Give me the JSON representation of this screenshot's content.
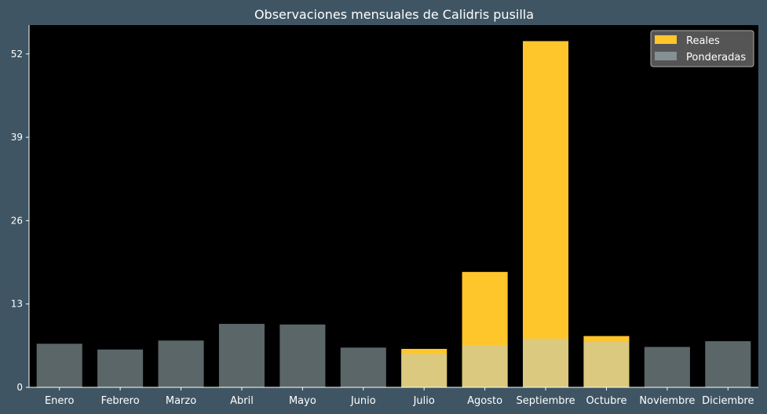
{
  "chart_data": {
    "type": "bar",
    "title": "Observaciones mensuales de Calidris pusilla",
    "xlabel": "",
    "ylabel": "",
    "categories": [
      "Enero",
      "Febrero",
      "Marzo",
      "Abril",
      "Mayo",
      "Junio",
      "Julio",
      "Agosto",
      "Septiembre",
      "Octubre",
      "Noviembre",
      "Diciembre"
    ],
    "series": [
      {
        "name": "Reales",
        "values": [
          0,
          0,
          0,
          0,
          0,
          0,
          6,
          18,
          54,
          8,
          0,
          0
        ]
      },
      {
        "name": "Ponderadas",
        "values": [
          6.8,
          5.9,
          7.3,
          9.9,
          9.8,
          6.2,
          5.2,
          6.6,
          7.6,
          7.2,
          6.3,
          7.2
        ]
      }
    ],
    "ylim": [
      0,
      56.5
    ],
    "yticks": [
      0,
      13,
      26,
      39,
      52
    ],
    "legend_position": "top-right",
    "grid": false,
    "colors": {
      "figure_background": "#3f5563",
      "plot_background": "#000000",
      "Reales": "#ffc62b",
      "Ponderadas": "#b5ccd2",
      "legend_background": "#555555",
      "text": "#ffffff"
    }
  }
}
